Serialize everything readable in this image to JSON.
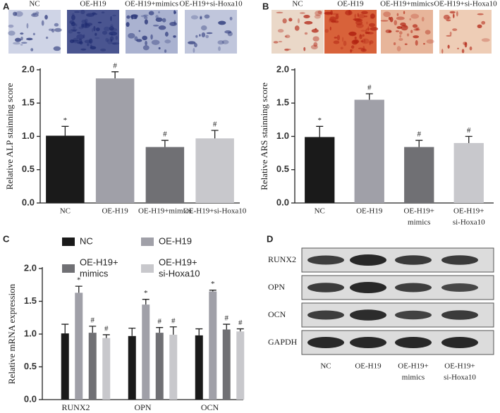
{
  "panels": {
    "a": "A",
    "b": "B",
    "c": "C",
    "d": "D"
  },
  "images_a": {
    "labels": [
      "NC",
      "OE-H19",
      "OE-H19+mimics",
      "OE-H19+si-Hoxa10"
    ]
  },
  "images_b": {
    "labels": [
      "NC",
      "OE-H19",
      "OE-H19+mimics",
      "OE-H19+si-Hoxa10"
    ]
  },
  "blot": {
    "rows": [
      "RUNX2",
      "OPN",
      "OCN",
      "GAPDH"
    ],
    "lanes": [
      [
        "NC"
      ],
      [
        "OE-H19"
      ],
      [
        "OE-H19+",
        "mimics"
      ],
      [
        "OE-H19+",
        "si-Hoxa10"
      ]
    ]
  },
  "chart_data": [
    {
      "type": "bar",
      "ylabel": "Relative ALP stainning score",
      "categories": [
        "NC",
        "OE-H19",
        "OE-H19+mimics",
        "OE-H19+si-Hoxa10"
      ],
      "values": [
        1.01,
        1.87,
        0.84,
        0.97
      ],
      "errors": [
        0.14,
        0.1,
        0.1,
        0.12
      ],
      "annotations": [
        "*",
        "#",
        "#",
        "#"
      ],
      "colors": [
        "#1a1a1a",
        "#a0a0a8",
        "#707074",
        "#c8c8cc"
      ],
      "ylim": [
        0,
        2
      ],
      "yticks": [
        {
          "value": 0,
          "label": "0.0"
        },
        0.5,
        {
          "value": 1,
          "label": "1.0"
        },
        1.5,
        {
          "value": 2,
          "label": "2.0"
        }
      ]
    },
    {
      "type": "bar",
      "ylabel": "Relative ARS stainning score",
      "categories": [
        "NC",
        "OE-H19",
        [
          "OE-H19+",
          "mimics"
        ],
        [
          "OE-H19+",
          "si-Hoxa10"
        ]
      ],
      "values": [
        0.99,
        1.55,
        0.84,
        0.9
      ],
      "errors": [
        0.16,
        0.09,
        0.1,
        0.1
      ],
      "annotations": [
        "*",
        "#",
        "#",
        "#"
      ],
      "colors": [
        "#1a1a1a",
        "#a0a0a8",
        "#707074",
        "#c8c8cc"
      ],
      "ylim": [
        0,
        2
      ],
      "yticks": [
        {
          "value": 0,
          "label": "0.0"
        },
        0.5,
        {
          "value": 1,
          "label": "1.0"
        },
        1.5,
        {
          "value": 2,
          "label": "2.0"
        }
      ]
    },
    {
      "type": "grouped_bar",
      "ylabel": "Relative mRNA expression",
      "categories": [
        "RUNX2",
        "OPN",
        "OCN"
      ],
      "series": [
        {
          "name": "NC",
          "color": "#1a1a1a",
          "values": [
            1.01,
            0.97,
            0.98
          ],
          "errors": [
            0.14,
            0.12,
            0.1
          ],
          "annotations": [
            null,
            null,
            null
          ]
        },
        {
          "name": "OE-H19",
          "color": "#a0a0a8",
          "values": [
            1.63,
            1.45,
            1.65
          ],
          "errors": [
            0.1,
            0.08,
            0.02
          ],
          "annotations": [
            "*",
            "*",
            "*"
          ]
        },
        {
          "name": [
            "OE-H19+",
            "mimics"
          ],
          "color": "#707074",
          "values": [
            1.02,
            1.02,
            1.07
          ],
          "errors": [
            0.1,
            0.08,
            0.08
          ],
          "annotations": [
            "#",
            "#",
            "#"
          ]
        },
        {
          "name": [
            "OE-H19+",
            "si-Hoxa10"
          ],
          "color": "#c8c8cc",
          "values": [
            0.94,
            0.99,
            1.04
          ],
          "errors": [
            0.05,
            0.12,
            0.04
          ],
          "annotations": [
            "#",
            "#",
            "#"
          ]
        }
      ],
      "ylim": [
        0,
        2
      ],
      "yticks": [
        {
          "value": 0,
          "label": "0.0"
        },
        0.5,
        {
          "value": 1,
          "label": "1.0"
        },
        1.5,
        {
          "value": 2,
          "label": "2.0"
        }
      ]
    }
  ]
}
